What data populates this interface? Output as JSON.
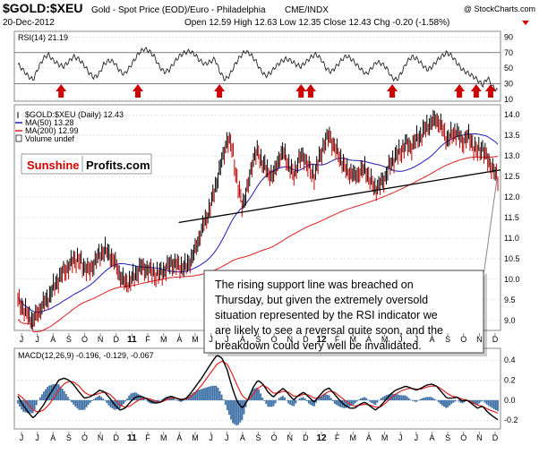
{
  "header": {
    "symbol": "$GOLD:$XEU",
    "description": "Gold - Spot Price (EOD)/Euro - Philadelphia",
    "exchange": "CME/INDX",
    "date": "20-Dec-2012",
    "ohlc": "Open 12.59 High 12.63 Low 12.35 Close 12.43 Chg -0.20 (-1.58%)",
    "watermark": "@ StockCharts.com"
  },
  "brand": {
    "part1": "Sunshine",
    "part2": "Profits.com"
  },
  "annotation_text": [
    "The rising support line was breached on",
    "Thursday, but given the extremely oversold",
    "situation represented by the RSI indicator we",
    "are likely to see a reversal quite soon, and the",
    "breakdown could very well be invalidated."
  ],
  "colors": {
    "price_bar": "#000000",
    "ma50": "#1c1cb4",
    "ma200": "#e02020",
    "arrow": "#cc0000",
    "macd_hist": "#3a6ea5",
    "brand_red": "#d40000",
    "grid": "#c8c8c8"
  },
  "chart_data": [
    {
      "type": "line",
      "name": "rsi",
      "title": "RSI(14) 21.19",
      "ylim": [
        10,
        95
      ],
      "yticks": [
        10,
        30,
        50,
        70,
        90
      ],
      "reference_lines": [
        30,
        70
      ],
      "values": [
        55,
        48,
        40,
        35,
        50,
        62,
        68,
        60,
        55,
        52,
        58,
        65,
        62,
        55,
        45,
        38,
        42,
        55,
        60,
        58,
        48,
        42,
        50,
        60,
        70,
        75,
        72,
        65,
        52,
        45,
        48,
        58,
        66,
        70,
        72,
        68,
        60,
        55,
        58,
        62,
        45,
        35,
        42,
        55,
        65,
        72,
        68,
        60,
        48,
        40,
        44,
        52,
        58,
        62,
        60,
        55,
        52,
        58,
        64,
        68,
        62,
        50,
        45,
        52,
        60,
        66,
        62,
        55,
        48,
        42,
        50,
        58,
        56,
        50,
        38,
        35,
        45,
        58,
        65,
        62,
        55,
        48,
        52,
        60,
        66,
        70,
        65,
        56,
        48,
        44,
        40,
        35,
        28,
        38,
        26,
        21.19
      ],
      "arrows_at": [
        0.09,
        0.25,
        0.42,
        0.59,
        0.61,
        0.78,
        0.92,
        0.955,
        0.985
      ]
    },
    {
      "type": "bar",
      "name": "price",
      "title": "$GOLD:$XEU (Daily) 12.43",
      "ylim": [
        8.8,
        14.2
      ],
      "yticks": [
        9.0,
        9.5,
        10.0,
        10.5,
        11.0,
        11.5,
        12.0,
        12.5,
        13.0,
        13.5,
        14.0
      ],
      "close": [
        9.5,
        9.3,
        9.1,
        9.0,
        9.2,
        9.4,
        9.55,
        9.8,
        10.0,
        10.2,
        10.3,
        10.5,
        10.45,
        10.3,
        10.2,
        10.4,
        10.6,
        10.7,
        10.6,
        10.4,
        10.1,
        9.9,
        9.95,
        10.1,
        10.3,
        10.25,
        10.2,
        10.1,
        10.15,
        10.25,
        10.4,
        10.35,
        10.3,
        10.3,
        10.5,
        10.8,
        11.2,
        11.5,
        11.9,
        12.4,
        12.9,
        13.4,
        13.2,
        12.3,
        11.8,
        12.2,
        12.9,
        13.1,
        12.8,
        12.6,
        12.5,
        12.9,
        13.1,
        12.8,
        12.5,
        12.9,
        13.0,
        12.7,
        12.5,
        12.9,
        13.3,
        13.5,
        13.2,
        13.0,
        12.7,
        12.6,
        12.5,
        12.6,
        12.7,
        12.4,
        12.2,
        12.3,
        12.5,
        12.8,
        13.0,
        13.1,
        13.3,
        13.2,
        13.4,
        13.5,
        13.7,
        13.8,
        13.9,
        13.7,
        13.4,
        13.5,
        13.6,
        13.3,
        13.5,
        13.3,
        13.1,
        13.2,
        12.9,
        12.7,
        12.43
      ],
      "legend": [
        {
          "label": "$GOLD:$XEU (Daily) 12.43",
          "color": "#000000"
        },
        {
          "label": "MA(50) 13.28",
          "color": "#1c1cb4"
        },
        {
          "label": "MA(200) 12.99",
          "color": "#e02020"
        },
        {
          "label": "Volume undef",
          "color": "#000000"
        }
      ],
      "support_line": {
        "start": [
          0.335,
          11.38
        ],
        "end": [
          1.0,
          12.66
        ]
      }
    },
    {
      "type": "line",
      "name": "macd",
      "title": "MACD(12,26,9) -0.196, -0.129, -0.067",
      "ylim": [
        -0.27,
        0.5
      ],
      "yticks": [
        -0.2,
        0.0,
        0.2,
        0.4
      ],
      "macd": [
        0.04,
        -0.05,
        -0.12,
        -0.18,
        -0.12,
        -0.05,
        0.04,
        0.12,
        0.2,
        0.22,
        0.2,
        0.15,
        0.08,
        0.02,
        0.03,
        0.06,
        0.1,
        0.08,
        0.02,
        -0.05,
        -0.1,
        -0.08,
        -0.02,
        0.03,
        0.04,
        0.02,
        -0.01,
        -0.03,
        -0.02,
        0.02,
        0.04,
        0.02,
        0.0,
        0.02,
        0.08,
        0.15,
        0.22,
        0.3,
        0.38,
        0.45,
        0.42,
        0.3,
        0.12,
        -0.02,
        -0.08,
        0.0,
        0.12,
        0.2,
        0.16,
        0.08,
        0.03,
        0.08,
        0.12,
        0.06,
        0.0,
        0.05,
        0.08,
        0.03,
        -0.02,
        0.04,
        0.1,
        0.12,
        0.06,
        0.0,
        -0.05,
        -0.08,
        -0.08,
        -0.04,
        -0.02,
        -0.06,
        -0.1,
        -0.06,
        0.0,
        0.06,
        0.1,
        0.12,
        0.14,
        0.12,
        0.1,
        0.12,
        0.15,
        0.16,
        0.14,
        0.08,
        0.02,
        0.02,
        0.03,
        -0.01,
        0.0,
        -0.04,
        -0.08,
        -0.06,
        -0.12,
        -0.16,
        -0.196
      ],
      "signal": [
        0.06,
        0.02,
        -0.04,
        -0.1,
        -0.12,
        -0.1,
        -0.05,
        0.02,
        0.1,
        0.16,
        0.19,
        0.18,
        0.14,
        0.08,
        0.05,
        0.05,
        0.07,
        0.08,
        0.06,
        0.01,
        -0.05,
        -0.07,
        -0.06,
        -0.02,
        0.01,
        0.02,
        0.01,
        -0.01,
        -0.02,
        0.0,
        0.02,
        0.02,
        0.01,
        0.01,
        0.04,
        0.09,
        0.15,
        0.22,
        0.29,
        0.36,
        0.39,
        0.36,
        0.26,
        0.14,
        0.04,
        0.0,
        0.05,
        0.12,
        0.15,
        0.12,
        0.07,
        0.07,
        0.09,
        0.08,
        0.04,
        0.04,
        0.06,
        0.05,
        0.02,
        0.02,
        0.06,
        0.09,
        0.08,
        0.04,
        0.0,
        -0.04,
        -0.06,
        -0.05,
        -0.04,
        -0.05,
        -0.07,
        -0.07,
        -0.03,
        0.02,
        0.06,
        0.09,
        0.11,
        0.12,
        0.11,
        0.11,
        0.13,
        0.14,
        0.14,
        0.11,
        0.07,
        0.04,
        0.03,
        0.01,
        0.0,
        -0.02,
        -0.05,
        -0.06,
        -0.09,
        -0.11,
        -0.129
      ]
    }
  ],
  "x_axis": {
    "labels": [
      "J",
      "J",
      "A",
      "S",
      "O",
      "N",
      "D",
      "11",
      "F",
      "M",
      "A",
      "M",
      "J",
      "J",
      "A",
      "S",
      "O",
      "N",
      "D",
      "12",
      "F",
      "M",
      "A",
      "M",
      "J",
      "J",
      "A",
      "S",
      "O",
      "N",
      "D"
    ],
    "bold": [
      "11",
      "12"
    ]
  }
}
